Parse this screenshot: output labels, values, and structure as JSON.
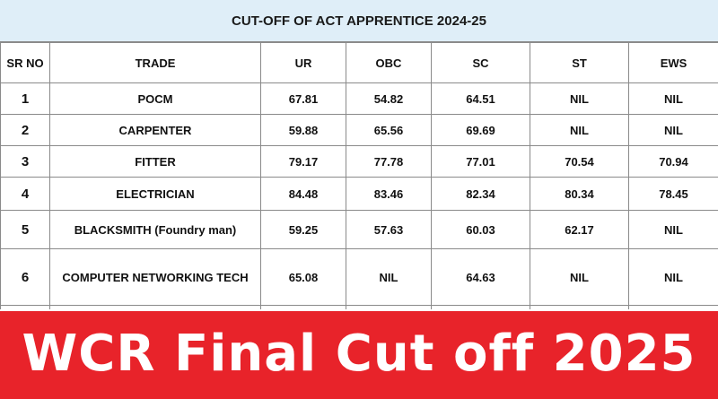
{
  "title": "CUT-OFF OF ACT APPRENTICE 2024-25",
  "table": {
    "headers": {
      "sr_no": "SR NO",
      "trade": "TRADE",
      "ur": "UR",
      "obc": "OBC",
      "sc": "SC",
      "st": "ST",
      "ews": "EWS"
    },
    "rows": [
      {
        "sr": "1",
        "trade": "POCM",
        "ur": "67.81",
        "obc": "54.82",
        "sc": "64.51",
        "st": "NIL",
        "ews": "NIL"
      },
      {
        "sr": "2",
        "trade": "CARPENTER",
        "ur": "59.88",
        "obc": "65.56",
        "sc": "69.69",
        "st": "NIL",
        "ews": "NIL"
      },
      {
        "sr": "3",
        "trade": "FITTER",
        "ur": "79.17",
        "obc": "77.78",
        "sc": "77.01",
        "st": "70.54",
        "ews": "70.94"
      },
      {
        "sr": "4",
        "trade": "ELECTRICIAN",
        "ur": "84.48",
        "obc": "83.46",
        "sc": "82.34",
        "st": "80.34",
        "ews": "78.45"
      },
      {
        "sr": "5",
        "trade": "BLACKSMITH (Foundry man)",
        "ur": "59.25",
        "obc": "57.63",
        "sc": "60.03",
        "st": "62.17",
        "ews": "NIL"
      },
      {
        "sr": "6",
        "trade": "COMPUTER NETWORKING TECH",
        "ur": "65.08",
        "obc": "NIL",
        "sc": "64.63",
        "st": "NIL",
        "ews": "NIL"
      }
    ]
  },
  "banner": {
    "text": "WCR Final Cut off 2025",
    "background": "#e8232a",
    "color": "#ffffff"
  },
  "colors": {
    "title_background": "#dfeef8",
    "grid_line": "#8a8a8a"
  }
}
